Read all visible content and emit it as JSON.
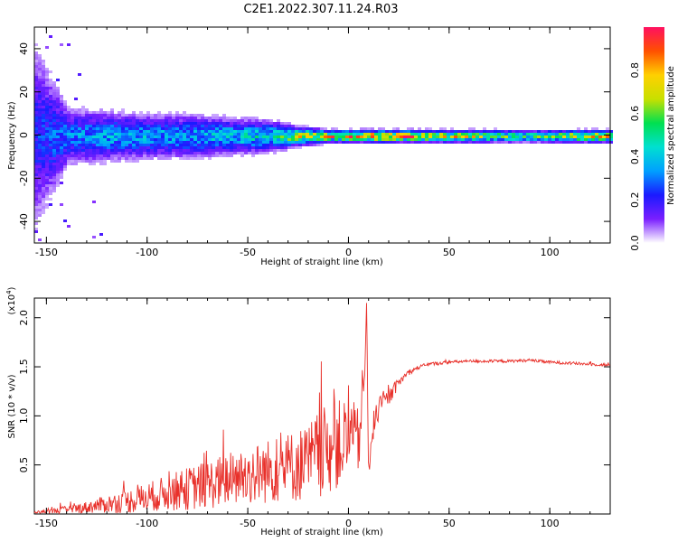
{
  "page": {
    "title": "C2E1.2022.307.11.24.R03"
  },
  "colors": {
    "snr_line": "#e8302a",
    "colormap": [
      "#ffffff",
      "#7a1fff",
      "#1a1aff",
      "#00a0ff",
      "#00e0d0",
      "#00e050",
      "#c8e000",
      "#ffd000",
      "#ff5000",
      "#ff1060"
    ]
  },
  "chart_data": [
    {
      "type": "heatmap",
      "name": "spectrogram",
      "xlabel": "Height of straight line (km)",
      "ylabel": "Frequency (Hz)",
      "xlim": [
        -156,
        130
      ],
      "ylim": [
        -50,
        50
      ],
      "x_ticks": [
        -150,
        -100,
        -50,
        0,
        50,
        100
      ],
      "x_tick_labels": [
        "-150",
        "-100",
        "-50",
        "0",
        "50",
        "100"
      ],
      "y_ticks": [
        -40,
        -20,
        0,
        20,
        40
      ],
      "y_tick_labels": [
        "-40",
        "-20",
        "0",
        "20",
        "40"
      ],
      "colorbar": {
        "label": "Normalized spectral amplitude",
        "range": [
          0,
          1
        ],
        "ticks": [
          0.0,
          0.2,
          0.4,
          0.6,
          0.8
        ],
        "tick_labels": [
          "0.0",
          "0.2",
          "0.4",
          "0.6",
          "0.8"
        ]
      },
      "description_profile": {
        "x": [
          -156,
          -140,
          -120,
          -100,
          -80,
          -60,
          -40,
          -25,
          -10,
          0,
          10,
          30,
          50,
          70,
          90,
          110,
          130
        ],
        "band_halfwidth_hz": [
          30,
          9,
          8,
          7,
          7,
          6,
          5,
          3,
          2,
          2,
          2,
          2,
          2,
          2,
          2,
          2,
          2
        ],
        "peak_amplitude": [
          0.25,
          0.35,
          0.4,
          0.4,
          0.4,
          0.45,
          0.5,
          0.75,
          0.85,
          0.9,
          0.95,
          0.9,
          0.8,
          0.7,
          0.55,
          0.8,
          0.85
        ]
      }
    },
    {
      "type": "line",
      "name": "snr",
      "xlabel": "Height of straight line (km)",
      "ylabel": "SNR (10 * v/v)",
      "y_scale_label": "(x10",
      "y_scale_exp": "4",
      "y_scale_close": ")",
      "xlim": [
        -156,
        130
      ],
      "ylim": [
        0,
        2.2
      ],
      "x_ticks": [
        -150,
        -100,
        -50,
        0,
        50,
        100
      ],
      "x_tick_labels": [
        "-150",
        "-100",
        "-50",
        "0",
        "50",
        "100"
      ],
      "y_ticks": [
        0.5,
        1.0,
        1.5,
        2.0
      ],
      "y_tick_labels": [
        "0.5",
        "1.0",
        "1.5",
        "2.0"
      ],
      "series": [
        {
          "x": [
            -156,
            -150,
            -140,
            -130,
            -120,
            -110,
            -100,
            -90,
            -80,
            -70,
            -60,
            -50,
            -40,
            -30,
            -20,
            -15,
            -10,
            -5,
            0,
            5,
            8,
            9,
            10,
            12,
            15,
            20,
            25,
            30,
            35,
            40,
            50,
            60,
            70,
            80,
            90,
            100,
            110,
            120,
            130
          ],
          "y": [
            0.02,
            0.03,
            0.05,
            0.08,
            0.12,
            0.15,
            0.2,
            0.25,
            0.3,
            0.35,
            0.4,
            0.45,
            0.5,
            0.55,
            0.6,
            0.7,
            0.75,
            0.8,
            0.85,
            0.8,
            1.4,
            2.15,
            0.5,
            0.9,
            1.1,
            1.2,
            1.35,
            1.45,
            1.5,
            1.53,
            1.55,
            1.56,
            1.56,
            1.56,
            1.57,
            1.55,
            1.54,
            1.53,
            1.52
          ],
          "noise_amplitude": [
            0.01,
            0.02,
            0.04,
            0.06,
            0.09,
            0.12,
            0.15,
            0.18,
            0.22,
            0.25,
            0.28,
            0.3,
            0.33,
            0.36,
            0.4,
            0.45,
            0.45,
            0.45,
            0.45,
            0.35,
            0.2,
            0.0,
            0.15,
            0.15,
            0.12,
            0.08,
            0.05,
            0.03,
            0.02,
            0.02,
            0.015,
            0.015,
            0.015,
            0.015,
            0.015,
            0.015,
            0.015,
            0.015,
            0.015
          ]
        }
      ]
    }
  ]
}
